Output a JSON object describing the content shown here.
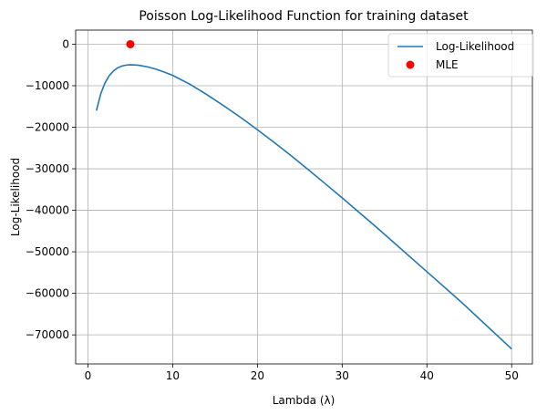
{
  "chart_data": {
    "type": "line",
    "title": "Poisson Log-Likelihood Function for training dataset",
    "xlabel": "Lambda (λ)",
    "ylabel": "Log-Likelihood",
    "xlim": [
      -1.45,
      52.45
    ],
    "ylim": [
      -77000,
      3400
    ],
    "x_ticks": [
      0,
      10,
      20,
      30,
      40,
      50
    ],
    "y_ticks": [
      0,
      -10000,
      -20000,
      -30000,
      -40000,
      -50000,
      -60000,
      -70000
    ],
    "y_tick_labels": [
      "0",
      "−10000",
      "−20000",
      "−30000",
      "−40000",
      "−50000",
      "−60000",
      "−70000"
    ],
    "grid": true,
    "legend_position": "upper right",
    "colors": {
      "line": "#1f77b4",
      "mle": "#ff0000"
    },
    "series": [
      {
        "name": "Log-Likelihood",
        "kind": "line",
        "x": [
          1,
          1.5,
          2,
          2.5,
          3,
          3.5,
          4,
          4.5,
          5,
          5.5,
          6,
          7,
          8,
          9,
          10,
          12,
          14,
          16,
          18,
          20,
          22,
          24,
          26,
          28,
          30,
          32,
          34,
          36,
          38,
          40,
          42,
          44,
          46,
          48,
          50
        ],
        "y": [
          -16000,
          -12000,
          -9350,
          -7600,
          -6450,
          -5700,
          -5250,
          -5030,
          -4960,
          -4990,
          -5080,
          -5440,
          -6000,
          -6700,
          -7500,
          -9600,
          -12100,
          -14800,
          -17600,
          -20600,
          -23700,
          -26900,
          -30200,
          -33600,
          -37000,
          -40500,
          -44000,
          -47600,
          -51200,
          -54800,
          -58400,
          -62000,
          -65800,
          -69600,
          -73400
        ]
      },
      {
        "name": "MLE",
        "kind": "scatter",
        "x": [
          5
        ],
        "y": [
          0
        ]
      }
    ]
  }
}
